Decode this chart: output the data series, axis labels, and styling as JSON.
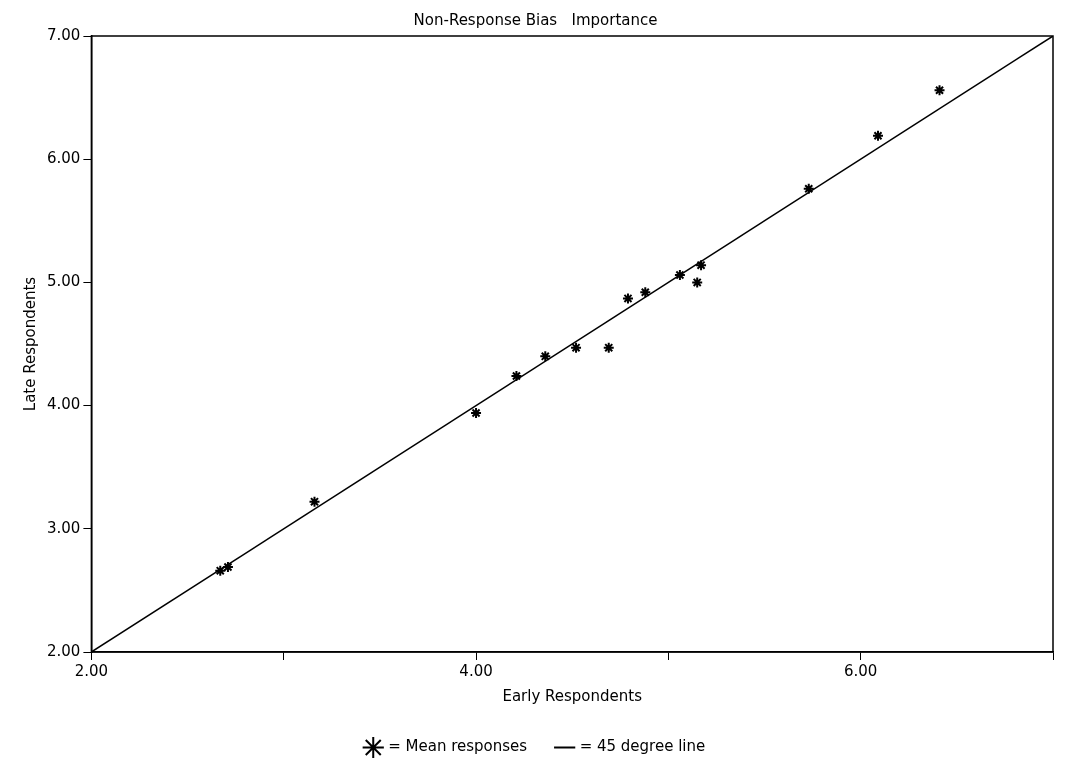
{
  "chart_data": {
    "type": "scatter",
    "title": "Non-Response Bias   Importance",
    "xlabel": "Early Respondents",
    "ylabel": "Late Respondents",
    "xlim": [
      2,
      7
    ],
    "ylim": [
      2,
      7
    ],
    "xticks": [
      {
        "value": 2,
        "label": "2.00"
      },
      {
        "value": 3,
        "label": null
      },
      {
        "value": 4,
        "label": "4.00"
      },
      {
        "value": 5,
        "label": null
      },
      {
        "value": 6,
        "label": "6.00"
      },
      {
        "value": 7,
        "label": null
      }
    ],
    "yticks": [
      {
        "value": 2,
        "label": "2.00"
      },
      {
        "value": 3,
        "label": "3.00"
      },
      {
        "value": 4,
        "label": "4.00"
      },
      {
        "value": 5,
        "label": "5.00"
      },
      {
        "value": 6,
        "label": "6.00"
      },
      {
        "value": 7,
        "label": "7.00"
      }
    ],
    "series": [
      {
        "name": "= Mean responses",
        "type": "scatter",
        "color": "#000000",
        "marker": "cross",
        "x": [
          2.67,
          2.71,
          3.16,
          4.0,
          4.21,
          4.36,
          4.52,
          4.69,
          4.79,
          4.88,
          5.06,
          5.17,
          5.15,
          5.73,
          6.09,
          6.41
        ],
        "values": [
          2.66,
          2.69,
          3.22,
          3.94,
          4.24,
          4.4,
          4.47,
          4.47,
          4.87,
          4.92,
          5.06,
          5.14,
          5.0,
          5.76,
          6.19,
          6.56
        ]
      },
      {
        "name": "= 45 degree line",
        "type": "line",
        "color": "#000000",
        "marker": "none",
        "line_style": "solid",
        "x": [
          2,
          7
        ],
        "values": [
          2,
          7
        ]
      }
    ],
    "grid": false,
    "legend": "bottom"
  }
}
